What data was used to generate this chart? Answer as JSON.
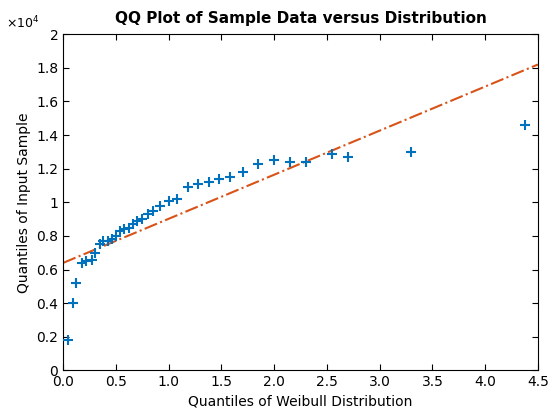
{
  "title": "QQ Plot of Sample Data versus Distribution",
  "xlabel": "Quantiles of Weibull Distribution",
  "ylabel": "Quantiles of Input Sample",
  "xlim": [
    0,
    4.5
  ],
  "ylim": [
    0,
    20000
  ],
  "ytick_scale": 10000,
  "ytick_values": [
    0,
    2000,
    4000,
    6000,
    8000,
    10000,
    12000,
    14000,
    16000,
    18000,
    20000
  ],
  "ytick_labels": [
    "0",
    "0.2",
    "0.4",
    "0.6",
    "0.8",
    "1",
    "1.2",
    "1.4",
    "1.6",
    "1.8",
    "2"
  ],
  "xtick_values": [
    0,
    0.5,
    1,
    1.5,
    2,
    2.5,
    3,
    3.5,
    4,
    4.5
  ],
  "scatter_x": [
    0.05,
    0.09,
    0.12,
    0.18,
    0.22,
    0.27,
    0.3,
    0.35,
    0.38,
    0.42,
    0.46,
    0.5,
    0.54,
    0.58,
    0.62,
    0.66,
    0.7,
    0.75,
    0.8,
    0.85,
    0.92,
    1.0,
    1.08,
    1.18,
    1.28,
    1.38,
    1.48,
    1.58,
    1.7,
    1.85,
    2.0,
    2.15,
    2.3,
    2.55,
    2.7,
    3.3,
    4.38
  ],
  "scatter_y": [
    1800,
    4000,
    5200,
    6400,
    6500,
    6600,
    7000,
    7500,
    7700,
    7700,
    7800,
    8000,
    8300,
    8400,
    8500,
    8700,
    8900,
    9000,
    9300,
    9500,
    9800,
    10100,
    10200,
    10900,
    11100,
    11200,
    11400,
    11500,
    11800,
    12300,
    12500,
    12400,
    12400,
    12900,
    12700,
    13000,
    14600
  ],
  "line_x": [
    0,
    4.5
  ],
  "line_y": [
    6400,
    18200
  ],
  "scatter_color": "#0072BD",
  "line_color": "#D95319",
  "scatter_marker": "+",
  "scatter_markersize": 7,
  "scatter_linewidths": 1.5,
  "line_style": "-.",
  "line_width": 1.5,
  "title_fontsize": 11,
  "label_fontsize": 10,
  "tick_fontsize": 10,
  "bg_color": "#ffffff"
}
